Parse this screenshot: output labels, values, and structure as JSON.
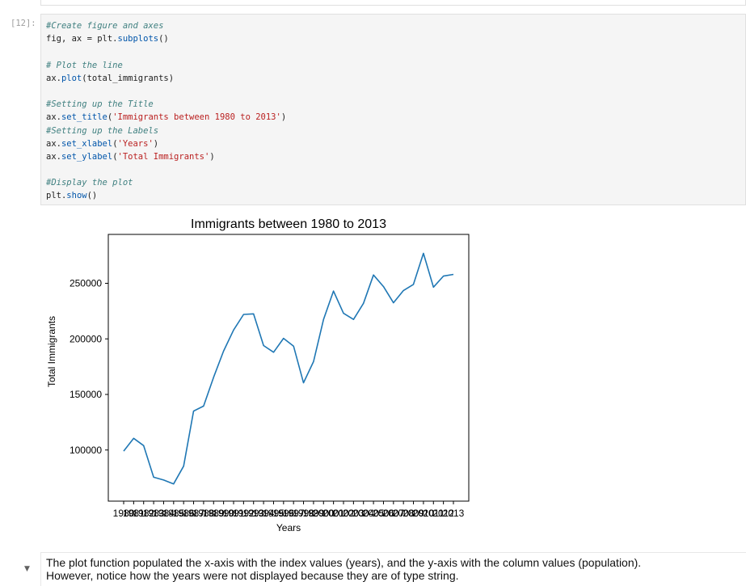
{
  "prev_cell": {},
  "cell": {
    "prompt": "[12]:",
    "code": {
      "c1": "#Create figure and axes",
      "l1_a": "fig, ax = plt.",
      "l1_fn": "subplots",
      "l1_b": "()",
      "c2": "# Plot the line",
      "l2_a": "ax.",
      "l2_fn": "plot",
      "l2_b": "(total_immigrants)",
      "c3": "#Setting up the Title",
      "l3_a": "ax.",
      "l3_fn": "set_title",
      "l3_b": "(",
      "l3_s": "'Immigrants between 1980 to 2013'",
      "l3_c": ")",
      "c4": "#Setting up the Labels",
      "l4_a": "ax.",
      "l4_fn": "set_xlabel",
      "l4_b": "(",
      "l4_s": "'Years'",
      "l4_c": ")",
      "l5_a": "ax.",
      "l5_fn": "set_ylabel",
      "l5_b": "(",
      "l5_s": "'Total Immigrants'",
      "l5_c": ")",
      "c5": "#Display the plot",
      "l6_a": "plt.",
      "l6_fn": "show",
      "l6_b": "()"
    }
  },
  "chart_data": {
    "type": "line",
    "title": "Immigrants between 1980 to 2013",
    "xlabel": "Years",
    "ylabel": "Total Immigrants",
    "x": [
      "1980",
      "1981",
      "1982",
      "1983",
      "1984",
      "1985",
      "1986",
      "1987",
      "1988",
      "1989",
      "1990",
      "1991",
      "1992",
      "1993",
      "1994",
      "1995",
      "1996",
      "1997",
      "1998",
      "1999",
      "2000",
      "2001",
      "2002",
      "2003",
      "2004",
      "2005",
      "2006",
      "2007",
      "2008",
      "2009",
      "2010",
      "2011",
      "2012",
      "2013"
    ],
    "values": [
      99000,
      110500,
      104000,
      75500,
      73000,
      69500,
      85500,
      135000,
      139500,
      165500,
      189000,
      208000,
      222000,
      222500,
      194000,
      188000,
      200500,
      193500,
      160500,
      179500,
      217500,
      243000,
      223000,
      217500,
      232000,
      257500,
      247000,
      232500,
      243500,
      249000,
      277000,
      246500,
      256500,
      258000
    ],
    "yticks": [
      100000,
      150000,
      200000,
      250000
    ],
    "ytick_labels": [
      "100000",
      "150000",
      "200000",
      "250000"
    ],
    "ylim": [
      54000,
      294000
    ],
    "line_color": "#1f77b4",
    "grid": false,
    "legend": false
  },
  "markdown": {
    "line1": "The plot function populated the x-axis with the index values (years), and the y-axis with the column values (population).",
    "line2": "However, notice how the years were not displayed because they are of type string."
  }
}
